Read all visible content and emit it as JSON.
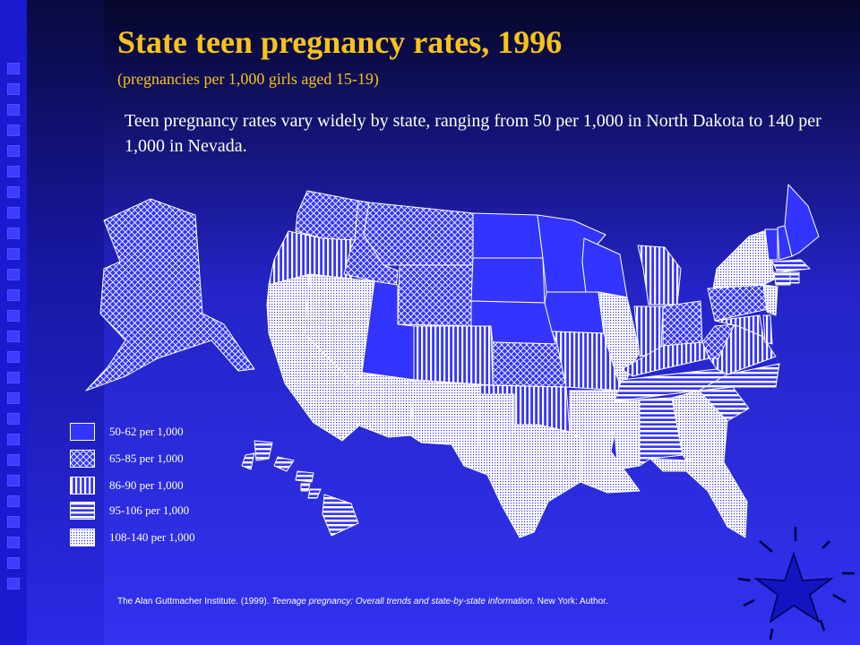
{
  "slide": {
    "title": "State teen pregnancy rates, 1996",
    "subtitle": "(pregnancies per 1,000 girls aged 15-19)",
    "description": "Teen pregnancy rates vary widely by state, ranging from 50 per 1,000 in North Dakota to 140 per 1,000 in Nevada.",
    "citation_prefix": "The Alan Guttmacher Institute. (1999). ",
    "citation_title": "Teenage pregnancy: Overall trends and state-by-state information.",
    "citation_suffix": " New York: Author."
  },
  "legend": [
    {
      "label": "50-62 per 1,000",
      "pattern": "solid"
    },
    {
      "label": "65-85 per 1,000",
      "pattern": "crosshatch"
    },
    {
      "label": "86-90 per 1,000",
      "pattern": "vertical"
    },
    {
      "label": "95-106 per 1,000",
      "pattern": "horizontal"
    },
    {
      "label": "108-140 per 1,000",
      "pattern": "dots"
    }
  ],
  "colors": {
    "title": "#f7c31b",
    "text": "#ffffff",
    "background": "#3232f0",
    "solid_fill": "#3434ff",
    "pattern_line": "#ffffff",
    "star_fill": "#1414c0"
  },
  "map_regions": [
    {
      "name": "WA",
      "pattern": "crosshatch"
    },
    {
      "name": "OR",
      "pattern": "vertical"
    },
    {
      "name": "CA",
      "pattern": "dots"
    },
    {
      "name": "NV",
      "pattern": "dots"
    },
    {
      "name": "ID",
      "pattern": "crosshatch"
    },
    {
      "name": "MT",
      "pattern": "crosshatch"
    },
    {
      "name": "WY",
      "pattern": "crosshatch"
    },
    {
      "name": "UT",
      "pattern": "solid"
    },
    {
      "name": "CO",
      "pattern": "vertical"
    },
    {
      "name": "AZ",
      "pattern": "dots"
    },
    {
      "name": "NM",
      "pattern": "dots"
    },
    {
      "name": "ND",
      "pattern": "solid"
    },
    {
      "name": "SD",
      "pattern": "solid"
    },
    {
      "name": "NE",
      "pattern": "solid"
    },
    {
      "name": "KS",
      "pattern": "crosshatch"
    },
    {
      "name": "OK",
      "pattern": "vertical"
    },
    {
      "name": "TX",
      "pattern": "dots"
    },
    {
      "name": "MN",
      "pattern": "solid"
    },
    {
      "name": "IA",
      "pattern": "solid"
    },
    {
      "name": "MO",
      "pattern": "vertical"
    },
    {
      "name": "AR",
      "pattern": "dots"
    },
    {
      "name": "LA",
      "pattern": "dots"
    },
    {
      "name": "WI",
      "pattern": "solid"
    },
    {
      "name": "IL",
      "pattern": "dots"
    },
    {
      "name": "MI",
      "pattern": "vertical"
    },
    {
      "name": "IN",
      "pattern": "vertical"
    },
    {
      "name": "OH",
      "pattern": "crosshatch"
    },
    {
      "name": "KY",
      "pattern": "vertical"
    },
    {
      "name": "TN",
      "pattern": "horizontal"
    },
    {
      "name": "MS",
      "pattern": "dots"
    },
    {
      "name": "AL",
      "pattern": "horizontal"
    },
    {
      "name": "GA",
      "pattern": "dots"
    },
    {
      "name": "FL",
      "pattern": "dots"
    },
    {
      "name": "SC",
      "pattern": "horizontal"
    },
    {
      "name": "NC",
      "pattern": "horizontal"
    },
    {
      "name": "VA",
      "pattern": "vertical"
    },
    {
      "name": "WV",
      "pattern": "crosshatch"
    },
    {
      "name": "PA",
      "pattern": "crosshatch"
    },
    {
      "name": "NY",
      "pattern": "dots"
    },
    {
      "name": "NJ",
      "pattern": "dots"
    },
    {
      "name": "MD",
      "pattern": "vertical"
    },
    {
      "name": "DE",
      "pattern": "vertical"
    },
    {
      "name": "VT",
      "pattern": "solid"
    },
    {
      "name": "NH",
      "pattern": "solid"
    },
    {
      "name": "ME",
      "pattern": "solid"
    },
    {
      "name": "MA",
      "pattern": "horizontal"
    },
    {
      "name": "CT",
      "pattern": "horizontal"
    },
    {
      "name": "RI",
      "pattern": "horizontal"
    },
    {
      "name": "AK",
      "pattern": "crosshatch"
    },
    {
      "name": "HI",
      "pattern": "horizontal"
    }
  ]
}
